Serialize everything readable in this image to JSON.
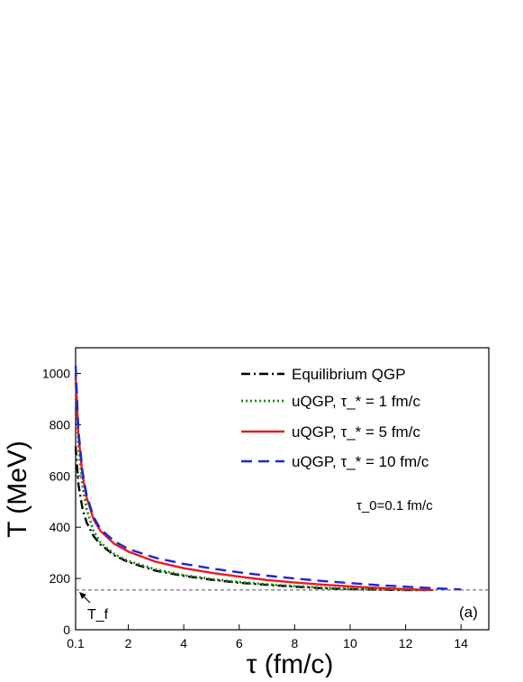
{
  "chart_data": {
    "type": "line",
    "xlabel": "τ (fm/c)",
    "ylabel": "T (MeV)",
    "xlim": [
      0.1,
      15
    ],
    "ylim": [
      0,
      1100
    ],
    "x_ticks": [
      {
        "value": 0.1,
        "label": "0.1"
      },
      {
        "value": 2,
        "label": "2"
      },
      {
        "value": 4,
        "label": "4"
      },
      {
        "value": 6,
        "label": "6"
      },
      {
        "value": 8,
        "label": "8"
      },
      {
        "value": 10,
        "label": "10"
      },
      {
        "value": 12,
        "label": "12"
      },
      {
        "value": 14,
        "label": "14"
      }
    ],
    "y_ticks": [
      {
        "value": 0,
        "label": "0"
      },
      {
        "value": 200,
        "label": "200"
      },
      {
        "value": 400,
        "label": "400"
      },
      {
        "value": 600,
        "label": "600"
      },
      {
        "value": 800,
        "label": "800"
      },
      {
        "value": 1000,
        "label": "1000"
      }
    ],
    "legend_position": "top-right",
    "grid": false,
    "reference_line": {
      "y": 155,
      "label": "T_f",
      "color": "#555555",
      "style": "dashed"
    },
    "annotations": {
      "tau0": "τ_0=0.1 fm/c",
      "panel": "(a)"
    },
    "series": [
      {
        "name": "Equilibrium QGP",
        "color": "#000000",
        "style": "dashdot",
        "x": [
          0.1,
          0.2,
          0.35,
          0.5,
          0.75,
          1.0,
          1.5,
          2.0,
          3.0,
          4.0,
          5.0,
          6.0,
          7.0,
          8.0,
          9.0,
          10.0,
          11.0,
          12.0,
          12.8
        ],
        "y": [
          715,
          568,
          471,
          418,
          365,
          332,
          290,
          264,
          230,
          210,
          195,
          183,
          175,
          168,
          162,
          158,
          156,
          155,
          155
        ]
      },
      {
        "name": "uQGP, τ_* = 1 fm/c",
        "color": "#1a8a1a",
        "style": "dotted",
        "x": [
          0.1,
          0.2,
          0.35,
          0.5,
          0.75,
          1.0,
          1.5,
          2.0,
          3.0,
          4.0,
          5.0,
          6.0,
          7.0,
          8.0,
          9.0,
          10.0,
          11.0,
          12.0,
          12.8
        ],
        "y": [
          1000,
          720,
          560,
          470,
          385,
          340,
          295,
          268,
          235,
          213,
          198,
          186,
          177,
          170,
          164,
          160,
          157,
          155,
          155
        ]
      },
      {
        "name": "uQGP, τ_* = 5 fm/c",
        "color": "#e8191f",
        "style": "solid",
        "x": [
          0.1,
          0.2,
          0.35,
          0.5,
          0.75,
          1.0,
          1.5,
          2.0,
          3.0,
          4.0,
          5.0,
          6.0,
          7.0,
          8.0,
          9.0,
          10.0,
          11.0,
          12.0,
          13.0
        ],
        "y": [
          990,
          760,
          600,
          515,
          430,
          385,
          335,
          305,
          265,
          240,
          222,
          207,
          194,
          184,
          176,
          169,
          163,
          158,
          155
        ]
      },
      {
        "name": "uQGP, τ_* = 10 fm/c",
        "color": "#1f26d6",
        "style": "dashed",
        "x": [
          0.1,
          0.2,
          0.35,
          0.5,
          0.75,
          1.0,
          1.5,
          2.0,
          3.0,
          4.0,
          5.0,
          6.0,
          7.0,
          8.0,
          9.0,
          10.0,
          11.0,
          12.0,
          13.0,
          14.0
        ],
        "y": [
          1030,
          780,
          615,
          525,
          440,
          392,
          345,
          315,
          280,
          257,
          239,
          224,
          211,
          200,
          190,
          182,
          174,
          168,
          162,
          157
        ]
      }
    ]
  }
}
